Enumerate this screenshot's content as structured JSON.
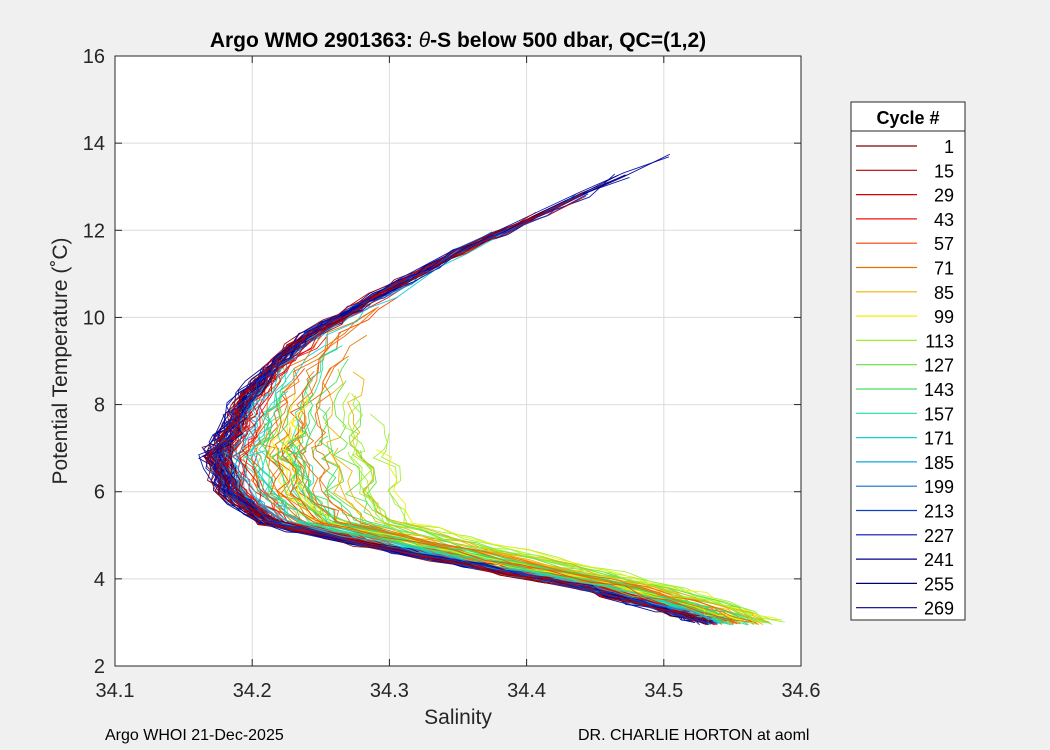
{
  "chart_data": {
    "type": "line",
    "title_prefix": "Argo WMO 2901363: ",
    "title_theta": "θ",
    "title_suffix": "-S below 500 dbar,  QC=(1,2)",
    "xlabel": "Salinity",
    "ylabel": "Potential Temperature (˚C)",
    "xlim": [
      34.1,
      34.6
    ],
    "ylim": [
      2,
      16
    ],
    "xticks": [
      "34.1",
      "34.2",
      "34.3",
      "34.4",
      "34.5",
      "34.6"
    ],
    "yticks": [
      "2",
      "4",
      "6",
      "8",
      "10",
      "12",
      "14",
      "16"
    ],
    "grid": true,
    "legend": {
      "title": "Cycle #",
      "placement": "right-outside",
      "entries": [
        "1",
        "15",
        "29",
        "43",
        "57",
        "71",
        "85",
        "99",
        "113",
        "127",
        "143",
        "157",
        "171",
        "185",
        "199",
        "213",
        "227",
        "241",
        "255",
        "269"
      ],
      "colors": [
        "#800000",
        "#b30000",
        "#d90000",
        "#f01010",
        "#ff4000",
        "#e87000",
        "#f0b000",
        "#f0f000",
        "#a0ee30",
        "#60e040",
        "#40e060",
        "#20e0a0",
        "#10d0d8",
        "#10a8e0",
        "#1070d0",
        "#0a40c0",
        "#0010b0",
        "#000090",
        "#000070",
        "#00008b"
      ]
    },
    "series_template": {
      "warm_branch": [
        [
          34.53,
          14.2
        ],
        [
          34.44,
          12.8
        ],
        [
          34.35,
          11.5
        ],
        [
          34.29,
          10.5
        ],
        [
          34.24,
          9.6
        ],
        [
          34.21,
          8.8
        ],
        [
          34.19,
          8.0
        ],
        [
          34.18,
          7.3
        ],
        [
          34.17,
          6.8
        ]
      ],
      "cold_branch": [
        [
          34.17,
          6.8
        ],
        [
          34.18,
          6.0
        ],
        [
          34.21,
          5.3
        ],
        [
          34.28,
          4.8
        ],
        [
          34.36,
          4.3
        ],
        [
          34.44,
          3.8
        ],
        [
          34.5,
          3.3
        ],
        [
          34.53,
          3.0
        ]
      ]
    }
  },
  "footer": {
    "left": "Argo WHOI 21-Dec-2025",
    "right": "DR. CHARLIE HORTON at aoml"
  }
}
